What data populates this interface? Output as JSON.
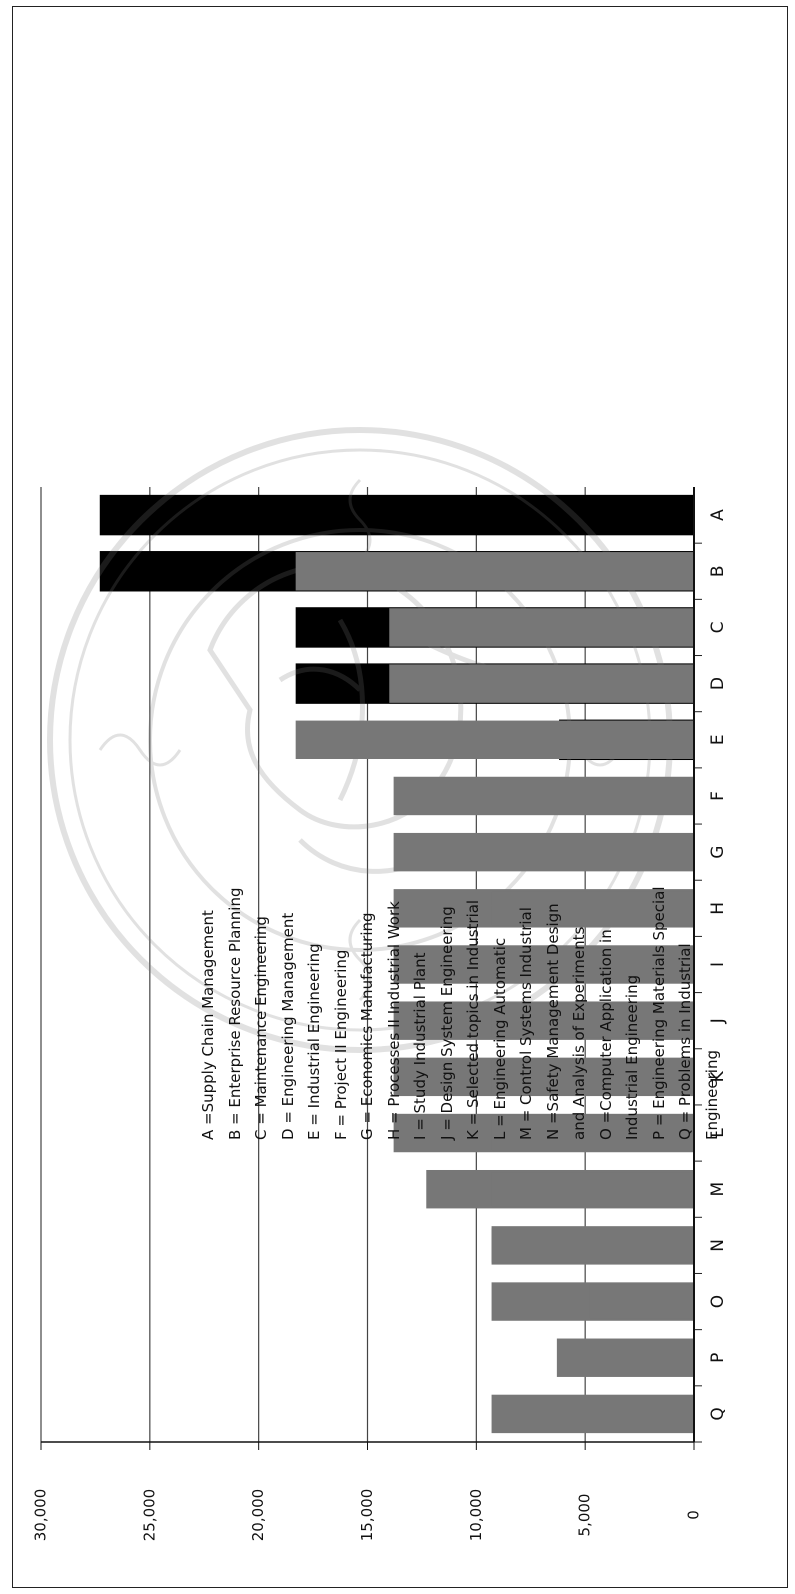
{
  "chart_data": {
    "type": "bar",
    "orientation": "vertical bars, figure rotated 90° counter-clockwise",
    "categories": [
      "A",
      "B",
      "C",
      "D",
      "E",
      "F",
      "G",
      "H",
      "I",
      "J",
      "K",
      "L",
      "M",
      "N",
      "O",
      "P",
      "Q"
    ],
    "series": [
      {
        "color": "#000000",
        "values": [
          27300,
          27300,
          18300,
          18300,
          6200,
          0,
          0,
          0,
          0,
          0,
          0,
          0,
          0,
          0,
          0,
          0,
          0
        ]
      },
      {
        "color": "#777777",
        "values": [
          0,
          18300,
          14000,
          14000,
          18300,
          13800,
          13800,
          13800,
          13800,
          13800,
          13800,
          13800,
          12300,
          9300,
          9300,
          6300,
          9300
        ]
      },
      {
        "color": "#777777",
        "values": [
          0,
          0,
          0,
          0,
          0,
          0,
          0,
          9300,
          0,
          9300,
          9300,
          9300,
          9300,
          9300,
          4800,
          0,
          0
        ]
      }
    ],
    "ylim": [
      0,
      30000
    ],
    "yticks": [
      "0",
      "5,000",
      "10,000",
      "15,000",
      "20,000",
      "25,000",
      "30,000"
    ],
    "grid": true,
    "legend_position": "right (top of rotated page)"
  },
  "legend_lines": [
    "A =Supply Chain Management",
    "B = Enterprise Resource Planning",
    "C = Maintenance Engineering",
    "D = Engineering Management",
    "E = Industrial Engineering",
    "F = Project II Engineering",
    "G = Economics Manufacturing",
    "H = Processes II Industrial Work",
    "I = Study Industrial Plant",
    "J = Design System Engineering",
    "K = Selected topics in Industrial",
    "L = Engineering Automatic",
    "M = Control Systems Industrial",
    "N =Safety Management Design",
    "and Analysis of Experiments",
    "O =Computer Application in",
    "Industrial Engineering",
    "P = Engineering Materials Special",
    "Q = Problems in Industrial",
    "Engineering"
  ],
  "colors": {
    "dark_bar": "#000000",
    "gray_bar": "#777777",
    "gridline": "#444444",
    "watermark": "#9a9a9a"
  }
}
